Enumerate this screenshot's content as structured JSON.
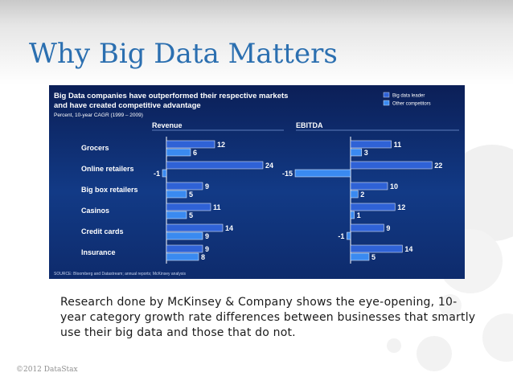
{
  "slide": {
    "title": "Why Big Data Matters",
    "caption": "Research done by McKinsey & Company shows the eye-opening, 10-year category growth rate differences between businesses that smartly use their big data and those that do not.",
    "footer": "©2012 DataStax"
  },
  "colors": {
    "title": "#2b6fb0",
    "panel_bg": "#0f2f74",
    "leader_bar": "#2f62d6",
    "other_bar": "#3a8af0",
    "axis_line": "#ffffff"
  },
  "chart_data": {
    "type": "bar",
    "title": "Big Data companies have outperformed their respective markets and have created competitive advantage",
    "subtitle": "Percent, 10-year CAGR (1999 – 2009)",
    "source": "SOURCE: Bloomberg and Datastream; annual reports; McKinsey analysis",
    "categories": [
      "Grocers",
      "Online retailers",
      "Big box retailers",
      "Casinos",
      "Credit cards",
      "Insurance"
    ],
    "legend": [
      "Big data leader",
      "Other competitors"
    ],
    "legend_position": "top-right",
    "panels": [
      {
        "name": "Revenue",
        "series": [
          {
            "name": "Big data leader",
            "values": [
              12,
              24,
              9,
              11,
              14,
              9
            ]
          },
          {
            "name": "Other competitors",
            "values": [
              6,
              -1,
              5,
              5,
              9,
              8
            ]
          }
        ]
      },
      {
        "name": "EBITDA",
        "series": [
          {
            "name": "Big data leader",
            "values": [
              11,
              22,
              10,
              12,
              9,
              14
            ]
          },
          {
            "name": "Other competitors",
            "values": [
              3,
              -15,
              2,
              1,
              -1,
              5
            ]
          }
        ]
      }
    ]
  }
}
